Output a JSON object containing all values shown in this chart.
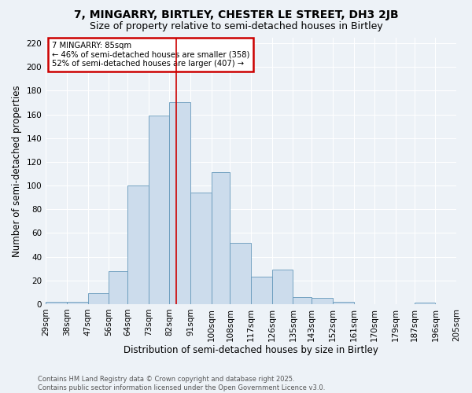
{
  "title": "7, MINGARRY, BIRTLEY, CHESTER LE STREET, DH3 2JB",
  "subtitle": "Size of property relative to semi-detached houses in Birtley",
  "xlabel": "Distribution of semi-detached houses by size in Birtley",
  "ylabel": "Number of semi-detached properties",
  "footer_line1": "Contains HM Land Registry data © Crown copyright and database right 2025.",
  "footer_line2": "Contains public sector information licensed under the Open Government Licence v3.0.",
  "annotation_title": "7 MINGARRY: 85sqm",
  "annotation_line2": "← 46% of semi-detached houses are smaller (358)",
  "annotation_line3": "52% of semi-detached houses are larger (407) →",
  "property_size": 85,
  "bin_edges": [
    29,
    38,
    47,
    56,
    64,
    73,
    82,
    91,
    100,
    108,
    117,
    126,
    135,
    143,
    152,
    161,
    170,
    179,
    187,
    196,
    205
  ],
  "bar_values": [
    2,
    2,
    9,
    28,
    100,
    159,
    170,
    94,
    111,
    52,
    23,
    29,
    6,
    5,
    2,
    0,
    0,
    0,
    1,
    0
  ],
  "bar_color": "#ccdcec",
  "bar_edge_color": "#6699bb",
  "vline_color": "#cc0000",
  "ylim": [
    0,
    225
  ],
  "yticks": [
    0,
    20,
    40,
    60,
    80,
    100,
    120,
    140,
    160,
    180,
    200,
    220
  ],
  "bg_color": "#edf2f7",
  "grid_color": "#ffffff",
  "title_fontsize": 10,
  "subtitle_fontsize": 9,
  "axis_label_fontsize": 8.5,
  "tick_fontsize": 7.5,
  "annotation_box_facecolor": "#ffffff",
  "annotation_box_edgecolor": "#cc0000",
  "footer_fontsize": 6,
  "footer_color": "#555555"
}
